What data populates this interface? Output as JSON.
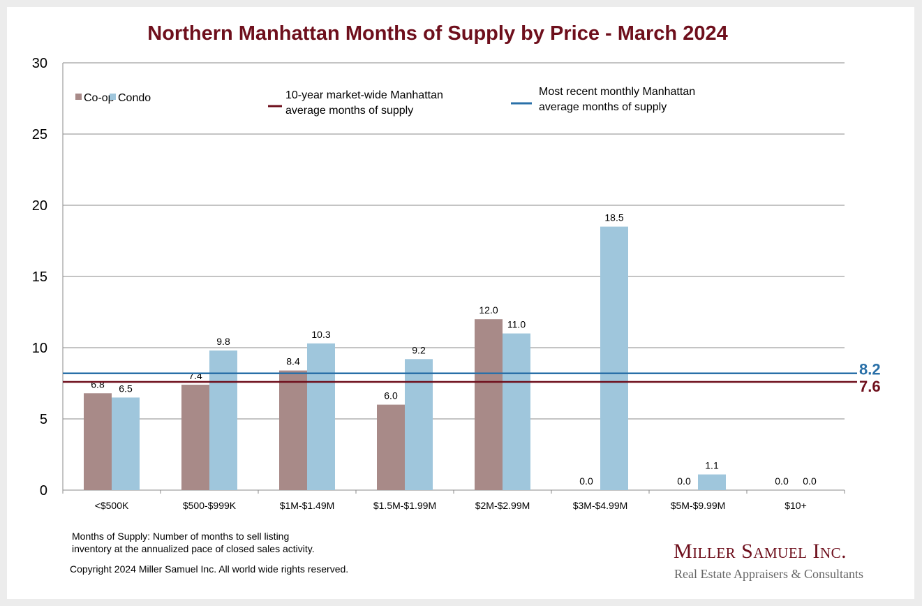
{
  "chart_data": {
    "type": "bar",
    "title": "Northern Manhattan Months of Supply by Price - March 2024",
    "xlabel": "",
    "ylabel": "",
    "ylim": [
      0,
      30
    ],
    "yticks": [
      "0",
      "5",
      "10",
      "15",
      "20",
      "25",
      "30"
    ],
    "grid": true,
    "legend_position": "top",
    "categories": [
      "<$500K",
      "$500-$999K",
      "$1M-$1.49M",
      "$1.5M-$1.99M",
      "$2M-$2.99M",
      "$3M-$4.99M",
      "$5M-$9.99M",
      "$10+"
    ],
    "series": [
      {
        "name": "Co-op",
        "color": "#a88a88",
        "values": [
          6.8,
          7.4,
          8.4,
          6.0,
          12.0,
          0.0,
          0.0,
          0.0
        ],
        "labels": [
          "6.8",
          "7.4",
          "8.4",
          "6.0",
          "12.0",
          "0.0",
          "0.0",
          "0.0"
        ]
      },
      {
        "name": "Condo",
        "color": "#9fc6dc",
        "values": [
          6.5,
          9.8,
          10.3,
          9.2,
          11.0,
          18.5,
          1.1,
          0.0
        ],
        "labels": [
          "6.5",
          "9.8",
          "10.3",
          "9.2",
          "11.0",
          "18.5",
          "1.1",
          "0.0"
        ]
      }
    ],
    "reference_lines": [
      {
        "name_line1": "10-year market-wide Manhattan",
        "name_line2": "average months of supply",
        "value": 7.6,
        "label": "7.6",
        "color": "#6e0f1c"
      },
      {
        "name_line1": "Most recent monthly Manhattan",
        "name_line2": "average months of supply",
        "value": 8.2,
        "label": "8.2",
        "color": "#2a70a8"
      }
    ]
  },
  "notes": {
    "definition_line1": "Months of Supply: Number of months to sell listing",
    "definition_line2": "inventory at the annualized pace of closed sales activity.",
    "copyright": "Copyright 2024 Miller Samuel Inc.  All world wide rights reserved."
  },
  "logo": {
    "name": "Miller Samuel Inc.",
    "tagline": "Real Estate Appraisers & Consultants"
  }
}
